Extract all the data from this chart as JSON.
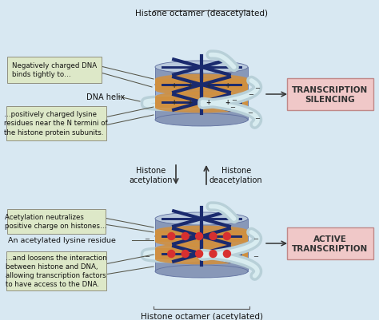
{
  "bg_color": "#d8e8f2",
  "title_top": "Histone octamer (deacetylated)",
  "title_bottom": "Histone octamer (acetylated)",
  "label_dna_neg": "Negatively charged DNA\nbinds tightly to…",
  "label_dna_helix": "DNA helix",
  "label_lysine": "…positively charged lysine\nresidues near the N termini of\nthe histone protein subunits.",
  "label_acetyl": "Acetylation neutralizes\npositive charge on histones…",
  "label_acetyl_res": "An acetylated lysine residue",
  "label_loosens": "…and loosens the interaction\nbetween histone and DNA,\nallowing transcription factors\nto have access to the DNA.",
  "label_histone_acetyl": "Histone\nacetylation",
  "label_histone_deacetyl": "Histone\ndeacetylation",
  "right_top": "TRANSCRIPTION\nSILENCING",
  "right_bottom": "ACTIVE\nTRANSCRIPTION",
  "annotation_box_color": "#dde8c8",
  "right_box_color": "#f0c8c8",
  "histone_side_color": "#8898b8",
  "histone_top_color": "#b8c8dc",
  "histone_mid_color": "#9aaccc",
  "dna_tube_color": "#b8d0d8",
  "dna_tube_highlight": "#d8ecf0",
  "dna_band_color": "#d09040",
  "navy_color": "#1a2a6e",
  "red_dot_color": "#d83030",
  "plus_color": "#333333",
  "minus_color": "#333333"
}
